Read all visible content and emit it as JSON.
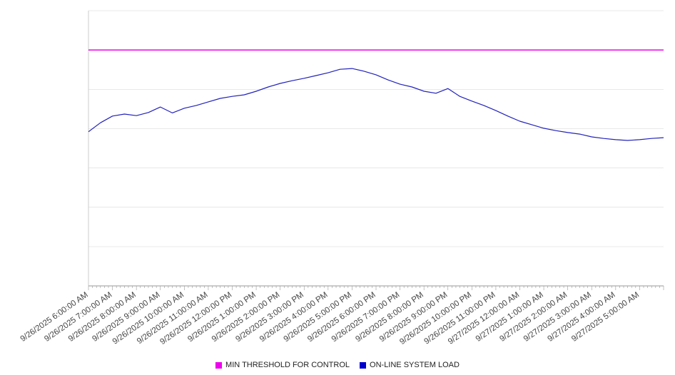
{
  "chart": {
    "legend": [
      {
        "label": "MIN THRESHOLD FOR CONTROL",
        "color": "#ee00ee"
      },
      {
        "label": "ON-LINE SYSTEM LOAD",
        "color": "#0000cd"
      }
    ]
  },
  "chart_data": {
    "type": "line",
    "title": "",
    "xlabel": "",
    "ylabel": "",
    "ylim": [
      0,
      700
    ],
    "grid": true,
    "legend_position": "bottom",
    "x_tick_interval_minutes": 60,
    "categories": [
      "9/26/2025 6:00:00 AM",
      "9/26/2025 7:00:00 AM",
      "9/26/2025 8:00:00 AM",
      "9/26/2025 9:00:00 AM",
      "9/26/2025 10:00:00 AM",
      "9/26/2025 11:00:00 AM",
      "9/26/2025 12:00:00 PM",
      "9/26/2025 1:00:00 PM",
      "9/26/2025 2:00:00 PM",
      "9/26/2025 3:00:00 PM",
      "9/26/2025 4:00:00 PM",
      "9/26/2025 5:00:00 PM",
      "9/26/2025 6:00:00 PM",
      "9/26/2025 7:00:00 PM",
      "9/26/2025 8:00:00 PM",
      "9/26/2025 9:00:00 PM",
      "9/26/2025 10:00:00 PM",
      "9/26/2025 11:00:00 PM",
      "9/27/2025 12:00:00 AM",
      "9/27/2025 1:00:00 AM",
      "9/27/2025 2:00:00 AM",
      "9/27/2025 3:00:00 AM",
      "9/27/2025 4:00:00 AM",
      "9/27/2025 5:00:00 AM"
    ],
    "series": [
      {
        "name": "MIN THRESHOLD FOR CONTROL",
        "style": "threshold",
        "color": "#ee00ee",
        "value": 600
      },
      {
        "name": "ON-LINE SYSTEM LOAD",
        "style": "line",
        "color": "#2222bb",
        "sample_interval_minutes": 30,
        "values": [
          392,
          415,
          432,
          437,
          433,
          441,
          455,
          440,
          452,
          459,
          468,
          477,
          482,
          486,
          495,
          506,
          515,
          522,
          528,
          535,
          542,
          551,
          553,
          546,
          537,
          524,
          513,
          506,
          495,
          490,
          502,
          482,
          470,
          459,
          446,
          432,
          419,
          410,
          401,
          395,
          390,
          386,
          379,
          375,
          372,
          370,
          372,
          375,
          377
        ]
      }
    ]
  }
}
